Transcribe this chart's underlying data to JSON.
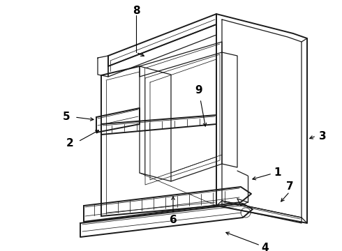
{
  "bg_color": "#ffffff",
  "line_color": "#1a1a1a",
  "label_color": "#000000",
  "figsize": [
    4.9,
    3.6
  ],
  "dpi": 100,
  "lw_heavy": 1.4,
  "lw_med": 0.9,
  "lw_thin": 0.55
}
